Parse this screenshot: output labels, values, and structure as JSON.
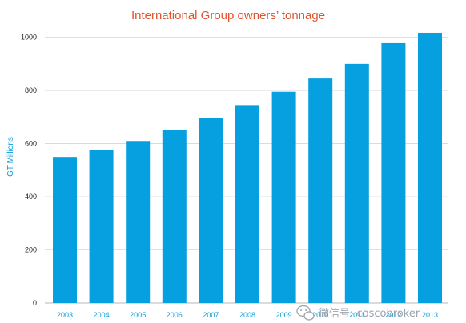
{
  "chart_data": {
    "type": "bar",
    "title": "International Group owners’ tonnage",
    "xlabel": "",
    "ylabel": "GT Millions",
    "categories": [
      "2003",
      "2004",
      "2005",
      "2006",
      "2007",
      "2008",
      "2009",
      "2010",
      "2011",
      "2012",
      "2013"
    ],
    "values": [
      550,
      575,
      610,
      650,
      695,
      745,
      795,
      845,
      900,
      978,
      1017
    ],
    "ylim": [
      0,
      1050
    ],
    "yticks": [
      0,
      200,
      400,
      600,
      800,
      1000
    ],
    "grid": true,
    "bar_color": "#069fe0"
  },
  "watermark": {
    "text": "微信号: coscobroker",
    "icon": "wechat-icon"
  }
}
